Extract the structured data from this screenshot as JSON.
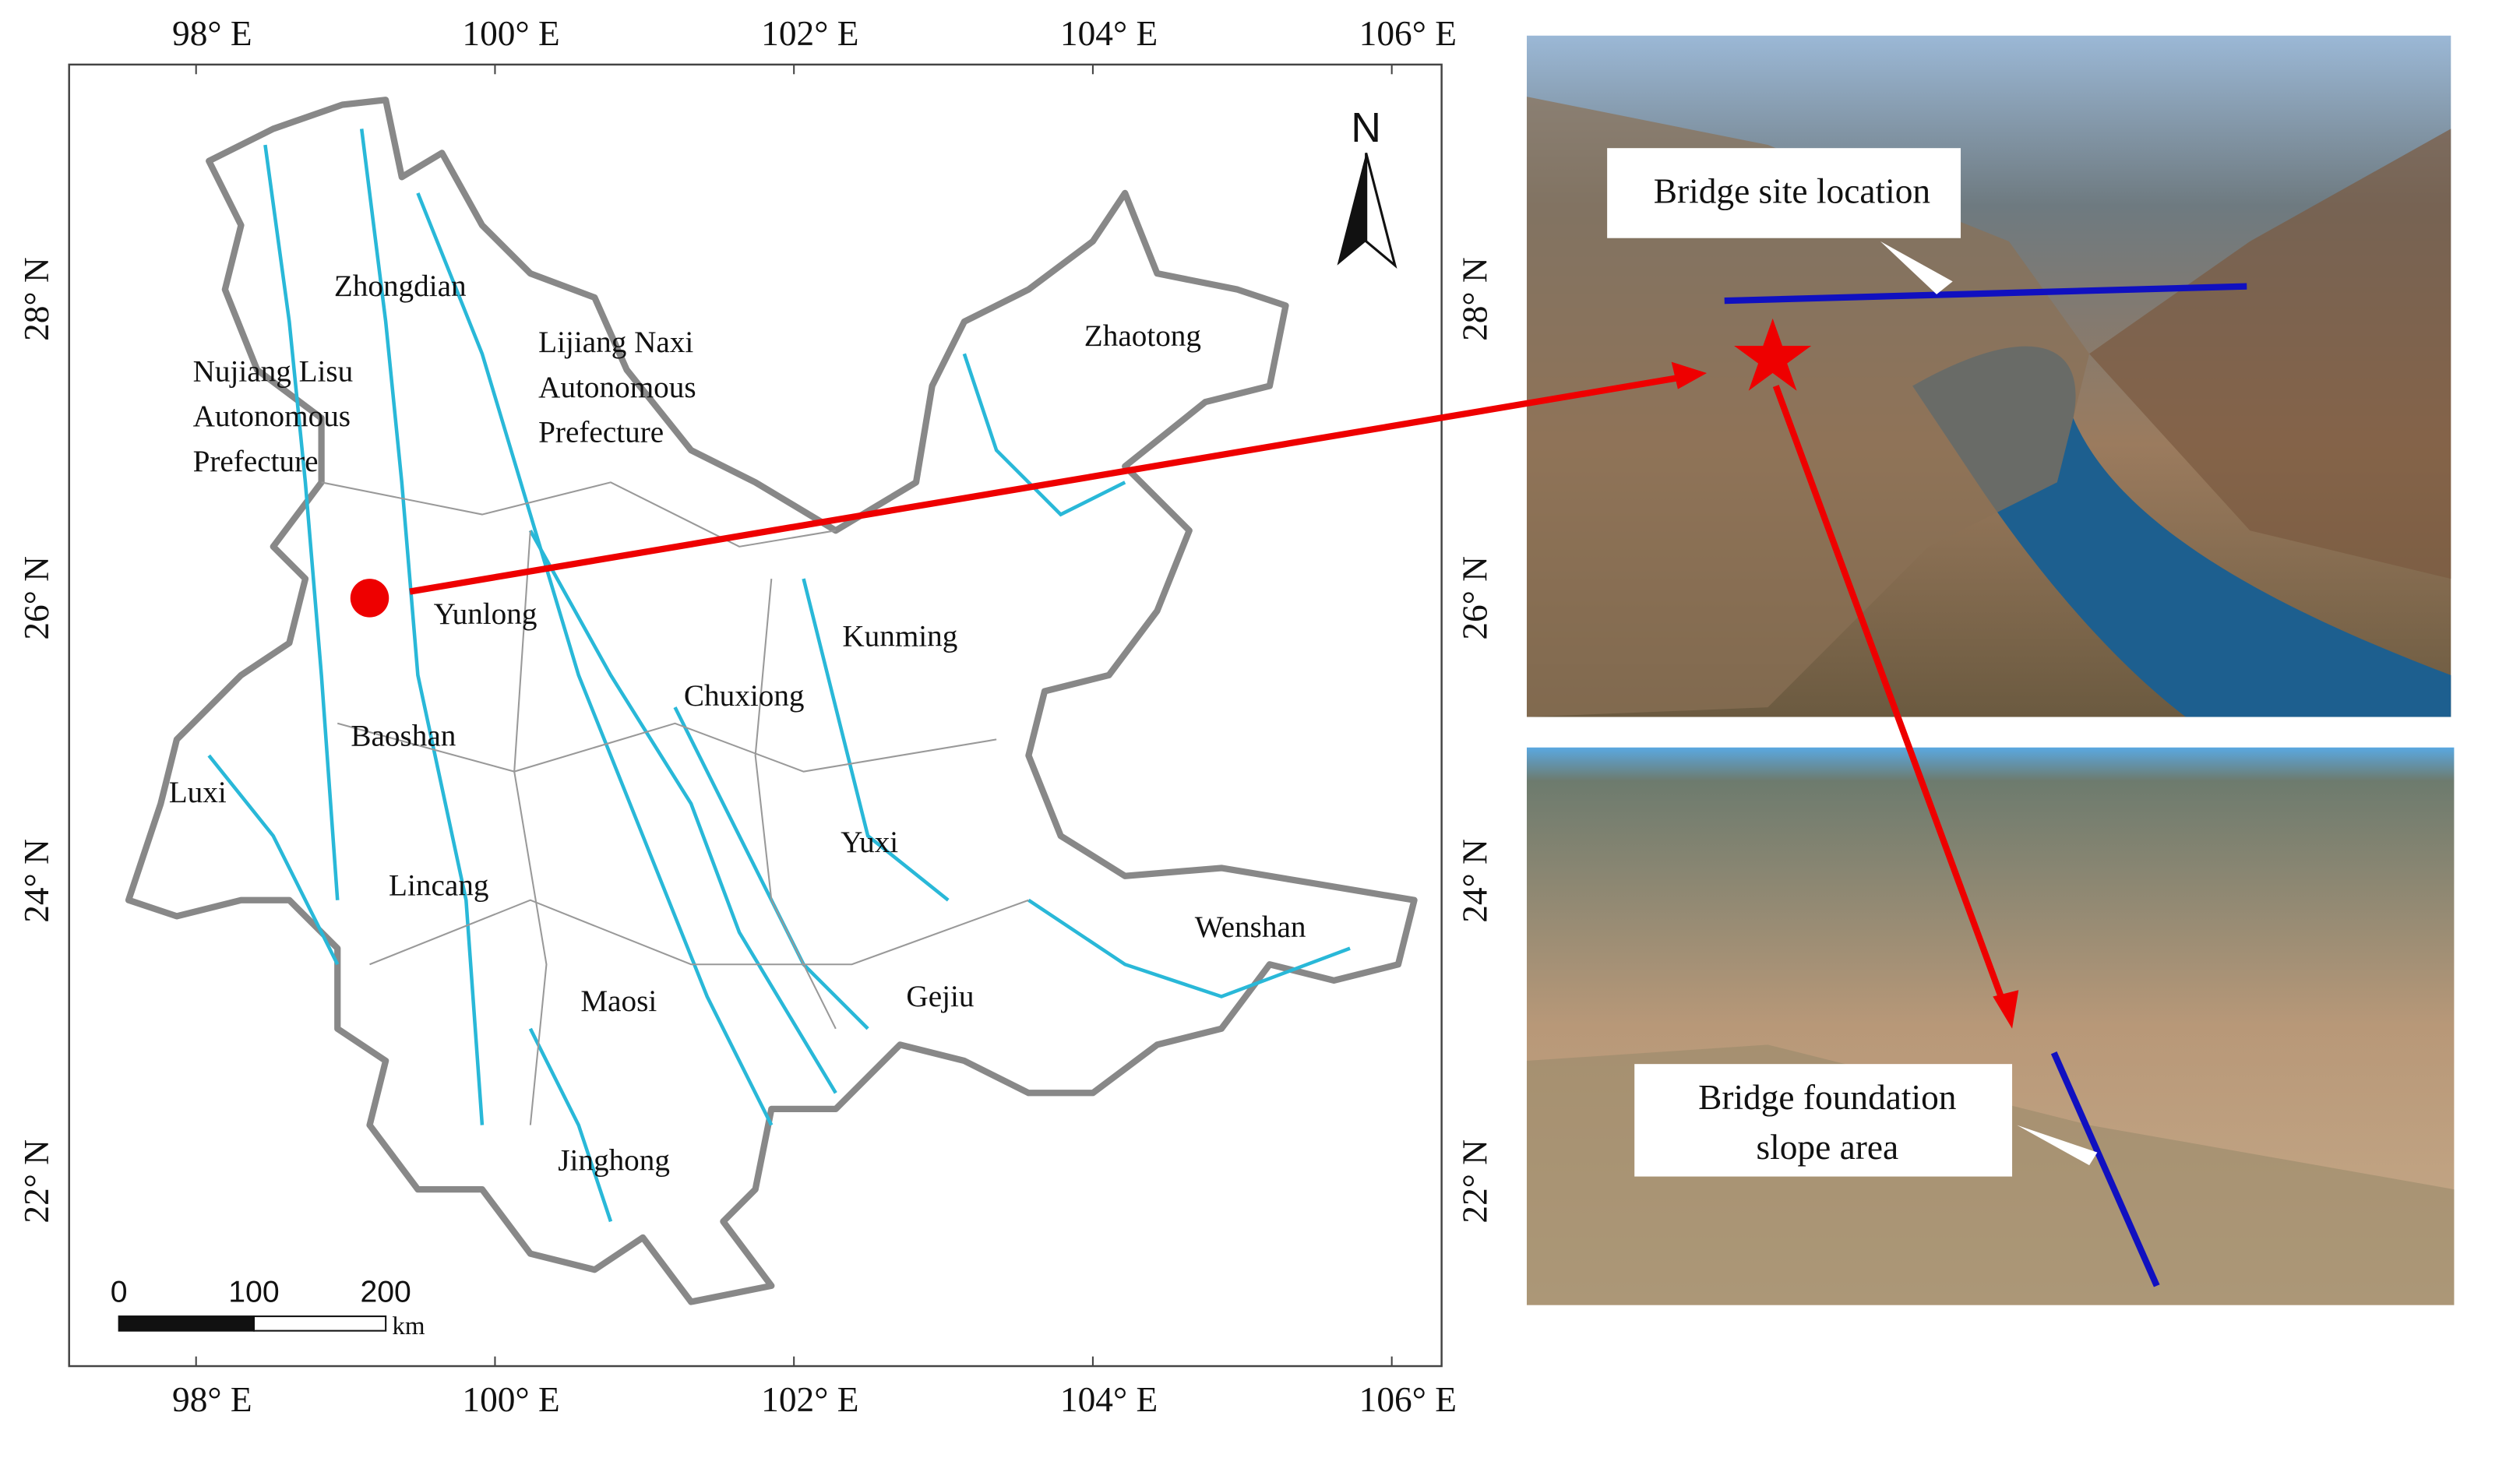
{
  "map": {
    "lon_labels": [
      "98° E",
      "100° E",
      "102° E",
      "104° E",
      "106° E"
    ],
    "lat_labels": [
      "28° N",
      "26° N",
      "24° N",
      "22° N"
    ],
    "north": "N",
    "places": [
      {
        "lines": [
          "Zhongdian"
        ]
      },
      {
        "lines": [
          "Nujiang  Lisu",
          "Autonomous",
          "Prefecture"
        ]
      },
      {
        "lines": [
          "Lijiang  Naxi",
          "Autonomous",
          "Prefecture"
        ]
      },
      {
        "lines": [
          "Zhaotong"
        ]
      },
      {
        "lines": [
          "Yunlong"
        ]
      },
      {
        "lines": [
          "Kunming"
        ]
      },
      {
        "lines": [
          "Chuxiong"
        ]
      },
      {
        "lines": [
          "Baoshan"
        ]
      },
      {
        "lines": [
          "Luxi"
        ]
      },
      {
        "lines": [
          "Yuxi"
        ]
      },
      {
        "lines": [
          "Lincang"
        ]
      },
      {
        "lines": [
          "Wenshan"
        ]
      },
      {
        "lines": [
          "Maosi"
        ]
      },
      {
        "lines": [
          "Gejiu"
        ]
      },
      {
        "lines": [
          "Jinghong"
        ]
      }
    ],
    "scale": {
      "ticks": [
        0,
        100,
        200
      ],
      "unit": "km"
    }
  },
  "photos": {
    "top_label": "Bridge site location",
    "bottom_label": [
      "Bridge foundation",
      "slope area"
    ]
  }
}
